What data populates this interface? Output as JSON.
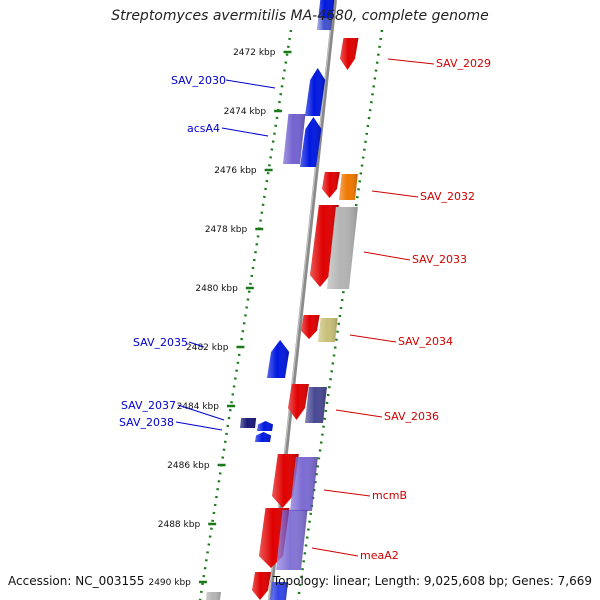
{
  "title": "Streptomyces avermitilis MA-4680, complete genome",
  "footer": {
    "accession": "Accession: NC_003155",
    "info": "Topology: linear; Length: 9,025,608 bp; Genes: 7,669"
  },
  "colors": {
    "dotted_guide": "#1a7a1a",
    "tick": "#1a7a1a",
    "axis": "#8a8a8a",
    "forward_label": "#d00000",
    "reverse_label": "#0000cc",
    "gene_red": "#e00000",
    "gene_blue": "#0018e0",
    "gene_purple": "#5a46c8",
    "gene_navy": "#1a1a78",
    "gene_orange": "#f07800",
    "gene_gray": "#b4b4b4",
    "gene_khaki": "#c8c078"
  },
  "ticks": [
    "2472 kbp",
    "2474 kbp",
    "2476 kbp",
    "2478 kbp",
    "2480 kbp",
    "2482 kbp",
    "2484 kbp",
    "2486 kbp",
    "2488 kbp",
    "2490 kbp"
  ],
  "gene_labels": [
    {
      "id": "SAV_2029",
      "strand": "forward"
    },
    {
      "id": "SAV_2030",
      "strand": "reverse"
    },
    {
      "id": "acsA4",
      "strand": "reverse"
    },
    {
      "id": "SAV_2032",
      "strand": "forward"
    },
    {
      "id": "SAV_2033",
      "strand": "forward"
    },
    {
      "id": "SAV_2034",
      "strand": "forward"
    },
    {
      "id": "SAV_2035",
      "strand": "reverse"
    },
    {
      "id": "SAV_2036",
      "strand": "forward"
    },
    {
      "id": "SAV_2037",
      "strand": "reverse"
    },
    {
      "id": "SAV_2038",
      "strand": "reverse"
    },
    {
      "id": "mcmB",
      "strand": "forward"
    },
    {
      "id": "meaA2",
      "strand": "forward"
    }
  ],
  "genes": [
    {
      "name": "gene-top-stub-blue",
      "color": "gene_blue"
    },
    {
      "name": "gene-top-stub-light",
      "color": "gene_gray"
    },
    {
      "name": "gene-sav-2029",
      "color": "gene_red"
    },
    {
      "name": "gene-sav-2030",
      "color": "gene_blue"
    },
    {
      "name": "gene-acsa4-blue",
      "color": "gene_blue"
    },
    {
      "name": "gene-acsa4-purple",
      "color": "gene_purple"
    },
    {
      "name": "gene-sav-2032-red",
      "color": "gene_red"
    },
    {
      "name": "gene-sav-2032-orange",
      "color": "gene_orange"
    },
    {
      "name": "gene-sav-2033-red",
      "color": "gene_red"
    },
    {
      "name": "gene-sav-2033-gray",
      "color": "gene_gray"
    },
    {
      "name": "gene-sav-2034-red",
      "color": "gene_red"
    },
    {
      "name": "gene-sav-2034-khaki",
      "color": "gene_khaki"
    },
    {
      "name": "gene-sav-2035",
      "color": "gene_blue"
    },
    {
      "name": "gene-sav-2036-red",
      "color": "gene_red"
    },
    {
      "name": "gene-sav-2036-purple",
      "color": "gene_navy"
    },
    {
      "name": "gene-sav-2037",
      "color": "gene_navy"
    },
    {
      "name": "gene-sav-2038-a",
      "color": "gene_blue"
    },
    {
      "name": "gene-sav-2038-b",
      "color": "gene_blue"
    },
    {
      "name": "gene-mcmb-red",
      "color": "gene_red"
    },
    {
      "name": "gene-mcmb-purple",
      "color": "gene_purple"
    },
    {
      "name": "gene-meaa2-red",
      "color": "gene_red"
    },
    {
      "name": "gene-meaa2-purple",
      "color": "gene_purple"
    },
    {
      "name": "gene-bottom-red",
      "color": "gene_red"
    },
    {
      "name": "gene-bottom-blue",
      "color": "gene_blue"
    },
    {
      "name": "gene-bottom-gray",
      "color": "gene_gray"
    }
  ]
}
